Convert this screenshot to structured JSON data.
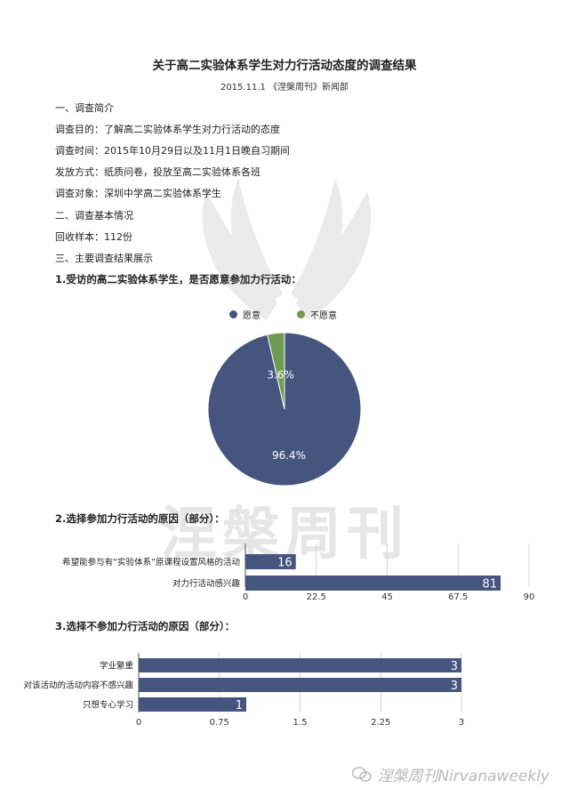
{
  "header": {
    "title": "关于高二实验体系学生对力行活动态度的调查结果",
    "subtitle": "2015.11.1 《涅槃周刊》新闻部"
  },
  "intro": {
    "section1": "一、调查简介",
    "purpose": "调查目的：了解高二实验体系学生对力行活动的态度",
    "time": "调查时间：2015年10月29日以及11月1日晚自习期间",
    "method": "发放方式：纸质问卷，投放至高二实验体系各班",
    "subject": "调查对象：深圳中学高二实验体系学生",
    "section2": "二、调查基本情况",
    "sample": "回收样本：112份",
    "section3": "三、主要调查结果展示"
  },
  "watermark_text": "涅槃周刊",
  "footer": {
    "text": "涅槃周刊Nirvanaweekly"
  },
  "colors": {
    "navy": "#46557d",
    "green": "#6f9a55",
    "axis": "#333333",
    "grid": "#cccccc"
  },
  "chart_data": [
    {
      "type": "pie",
      "title": "1.受访的高二实验体系学生，是否愿意参加力行活动：",
      "labels": [
        "愿意",
        "不愿意"
      ],
      "values": [
        96.4,
        3.6
      ],
      "value_labels": [
        "96.4%",
        "3.6%"
      ],
      "colors": [
        "#46557d",
        "#6f9a55"
      ],
      "legend": "top"
    },
    {
      "type": "bar",
      "orientation": "horizontal",
      "title": "2.选择参加力行活动的原因（部分）：",
      "categories": [
        "希望能参与有“实验体系”原课程设置风格的活动",
        "对力行活动感兴趣"
      ],
      "values": [
        16,
        81
      ],
      "xlim": [
        0,
        90
      ],
      "ticks": [
        "0",
        "22.5",
        "45",
        "67.5",
        "90"
      ],
      "grid": true
    },
    {
      "type": "bar",
      "orientation": "horizontal",
      "title": "3.选择不参加力行活动的原因（部分）：",
      "categories": [
        "学业繁重",
        "对该活动的活动内容不感兴趣",
        "只想专心学习"
      ],
      "values": [
        3,
        3,
        1
      ],
      "xlim": [
        0,
        3
      ],
      "ticks": [
        "0",
        "0.75",
        "1.5",
        "2.25",
        "3"
      ],
      "grid": true
    }
  ]
}
